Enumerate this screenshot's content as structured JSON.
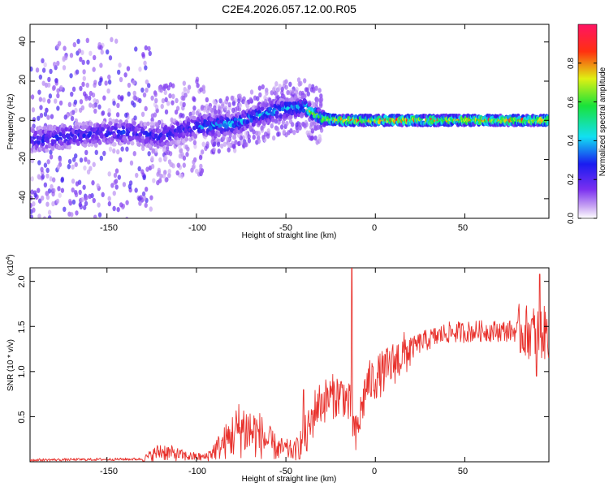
{
  "title": "C2E4.2026.057.12.00.R05",
  "colors": {
    "snr_line": "#e8312c",
    "axis": "#000000"
  },
  "chart_data": [
    {
      "type": "heatmap",
      "name": "spectrogram",
      "xlabel": "Height of straight line (km)",
      "ylabel": "Frequency (Hz)",
      "xlim": [
        -193,
        97
      ],
      "ylim": [
        -50,
        49
      ],
      "xticks": [
        -150,
        -100,
        -50,
        0,
        50
      ],
      "xtick_labels": [
        "-150",
        "-100",
        "-50",
        "0",
        "50"
      ],
      "yticks": [
        -40,
        -20,
        0,
        20,
        40
      ],
      "ytick_labels": [
        "-40",
        "-20",
        "0",
        "20",
        "40"
      ],
      "centerline": [
        {
          "x": -190,
          "y": -10
        },
        {
          "x": -160,
          "y": -7
        },
        {
          "x": -140,
          "y": -6
        },
        {
          "x": -120,
          "y": -8
        },
        {
          "x": -100,
          "y": -3
        },
        {
          "x": -80,
          "y": -2
        },
        {
          "x": -60,
          "y": 4
        },
        {
          "x": -50,
          "y": 6
        },
        {
          "x": -40,
          "y": 7
        },
        {
          "x": -30,
          "y": 1
        },
        {
          "x": -20,
          "y": 0
        },
        {
          "x": 0,
          "y": 0
        },
        {
          "x": 50,
          "y": 0
        },
        {
          "x": 95,
          "y": 0
        }
      ],
      "colorbar": {
        "label": "Normalized spectral amplitude",
        "min": 0,
        "max": 1,
        "ticks": [
          0.0,
          0.2,
          0.4,
          0.6,
          0.8
        ],
        "tick_labels": [
          "0.0",
          "0.2",
          "0.4",
          "0.6",
          "0.8"
        ]
      }
    },
    {
      "type": "line",
      "name": "snr",
      "xlabel": "Height of straight line (km)",
      "ylabel": "SNR (10 * v/v)",
      "scale_label": "(x10",
      "scale_exp": "4",
      "scale_close": ")",
      "xlim": [
        -193,
        97
      ],
      "ylim": [
        0,
        2.15
      ],
      "xticks": [
        -150,
        -100,
        -50,
        0,
        50
      ],
      "xtick_labels": [
        "-150",
        "-100",
        "-50",
        "0",
        "50"
      ],
      "yticks": [
        0.5,
        1.0,
        1.5,
        2.0
      ],
      "ytick_labels": [
        "0.5",
        "1.0",
        "1.5",
        "2.0"
      ],
      "trend": [
        {
          "x": -193,
          "y": 0.02
        },
        {
          "x": -130,
          "y": 0.03
        },
        {
          "x": -120,
          "y": 0.12
        },
        {
          "x": -105,
          "y": 0.06
        },
        {
          "x": -95,
          "y": 0.05
        },
        {
          "x": -85,
          "y": 0.2
        },
        {
          "x": -75,
          "y": 0.38
        },
        {
          "x": -65,
          "y": 0.3
        },
        {
          "x": -55,
          "y": 0.15
        },
        {
          "x": -45,
          "y": 0.12
        },
        {
          "x": -38,
          "y": 0.3
        },
        {
          "x": -33,
          "y": 0.62
        },
        {
          "x": -25,
          "y": 0.72
        },
        {
          "x": -18,
          "y": 0.75
        },
        {
          "x": -14,
          "y": 0.6
        },
        {
          "x": -11,
          "y": 0.25
        },
        {
          "x": -5,
          "y": 0.85
        },
        {
          "x": 5,
          "y": 1.0
        },
        {
          "x": 15,
          "y": 1.18
        },
        {
          "x": 25,
          "y": 1.32
        },
        {
          "x": 40,
          "y": 1.43
        },
        {
          "x": 60,
          "y": 1.45
        },
        {
          "x": 80,
          "y": 1.45
        },
        {
          "x": 97,
          "y": 1.42
        }
      ],
      "spikes": [
        {
          "x": -13,
          "y": 2.15
        },
        {
          "x": -40,
          "y": 0.8
        },
        {
          "x": 92,
          "y": 2.08
        },
        {
          "x": 90,
          "y": 0.95
        }
      ]
    }
  ]
}
